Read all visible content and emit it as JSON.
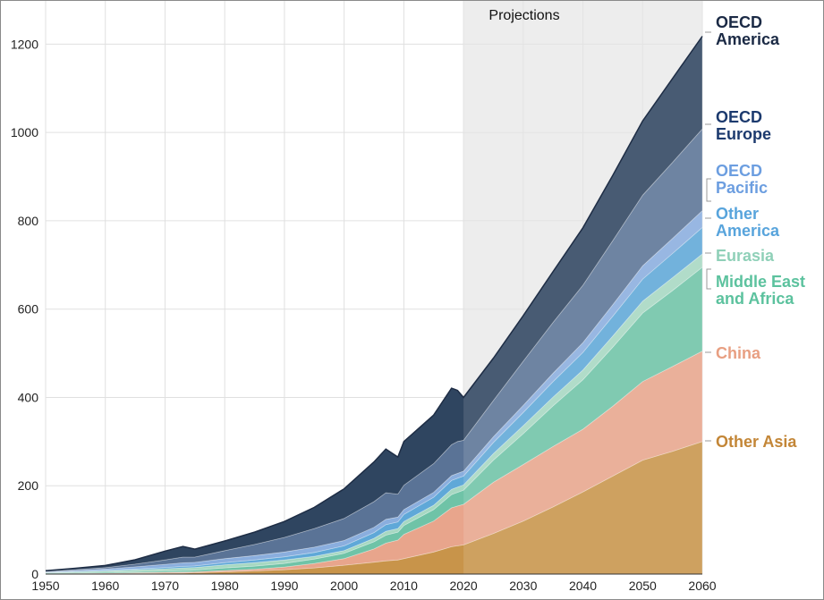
{
  "chart_data": {
    "type": "area",
    "stacked": true,
    "title": "",
    "xlabel": "",
    "ylabel": "",
    "xlim": [
      1950,
      2060
    ],
    "ylim": [
      0,
      1300
    ],
    "x_ticks": [
      1950,
      1960,
      1970,
      1980,
      1990,
      2000,
      2010,
      2020,
      2030,
      2040,
      2050,
      2060
    ],
    "y_ticks": [
      0,
      200,
      400,
      600,
      800,
      1000,
      1200
    ],
    "grid": true,
    "projection_start": 2020,
    "projection_label": "Projections",
    "legend_placement": "right (inline labels)",
    "x": [
      1950,
      1955,
      1960,
      1965,
      1970,
      1973,
      1975,
      1980,
      1985,
      1990,
      1995,
      2000,
      2005,
      2007,
      2009,
      2010,
      2015,
      2018,
      2019,
      2020,
      2025,
      2030,
      2035,
      2040,
      2045,
      2050,
      2055,
      2060
    ],
    "series": [
      {
        "name": "Other Asia",
        "color": "#c8944a",
        "values": [
          0.5,
          0.8,
          1,
          1.5,
          2,
          2.5,
          3,
          5,
          7,
          10,
          14,
          20,
          27,
          30,
          32,
          35,
          50,
          62,
          64,
          66,
          92,
          120,
          152,
          186,
          222,
          258,
          278,
          300
        ]
      },
      {
        "name": "China",
        "color": "#e8a58c",
        "values": [
          0.5,
          0.8,
          1,
          1.5,
          2,
          2,
          2,
          3,
          4,
          6,
          10,
          15,
          30,
          40,
          45,
          55,
          70,
          88,
          90,
          92,
          116,
          128,
          137,
          142,
          158,
          178,
          192,
          205
        ]
      },
      {
        "name": "Middle East and Africa",
        "color": "#6fc3a7",
        "values": [
          1,
          1.5,
          2,
          2.5,
          3,
          3.5,
          4,
          6,
          7,
          8,
          10,
          12,
          16,
          18,
          18,
          20,
          26,
          30,
          31,
          32,
          50,
          70,
          92,
          112,
          134,
          155,
          172,
          190
        ]
      },
      {
        "name": "Eurasia",
        "color": "#a7d8c2",
        "values": [
          1,
          2,
          3,
          4,
          5,
          6,
          6,
          7,
          8,
          8,
          6,
          6,
          8,
          9,
          8,
          9,
          10,
          12,
          12,
          12,
          15,
          18,
          20,
          22,
          25,
          27,
          29,
          30
        ]
      },
      {
        "name": "Other America",
        "color": "#5fa8d8",
        "values": [
          0.5,
          1,
          1.5,
          2,
          3,
          3.5,
          3.5,
          5,
          6,
          7,
          9,
          11,
          13,
          15,
          15,
          16,
          18,
          20,
          20,
          20,
          25,
          30,
          35,
          40,
          45,
          50,
          55,
          60
        ]
      },
      {
        "name": "OECD Pacific",
        "color": "#8aaede",
        "values": [
          1,
          2,
          3,
          5,
          7,
          8,
          8,
          9,
          10,
          11,
          12,
          12,
          12,
          12,
          11,
          11,
          11,
          11,
          11,
          11,
          13,
          16,
          19,
          22,
          26,
          30,
          34,
          38
        ]
      },
      {
        "name": "OECD Europe",
        "color": "#5a7396",
        "values": [
          1,
          2,
          3,
          6,
          10,
          13,
          12,
          18,
          25,
          33,
          42,
          50,
          58,
          60,
          52,
          55,
          65,
          70,
          72,
          70,
          82,
          100,
          115,
          130,
          145,
          160,
          172,
          185
        ]
      },
      {
        "name": "OECD America",
        "color": "#2f4560",
        "values": [
          2,
          3,
          5,
          10,
          20,
          24,
          18,
          22,
          28,
          36,
          48,
          67,
          90,
          99,
          84,
          99,
          110,
          128,
          116,
          97,
          96,
          103,
          115,
          130,
          148,
          168,
          190,
          210
        ]
      }
    ],
    "labels": [
      {
        "text": [
          "OECD",
          "America"
        ],
        "color": "#1b2a45"
      },
      {
        "text": [
          "OECD",
          "Europe"
        ],
        "color": "#1c3a6e"
      },
      {
        "text": [
          "OECD",
          "Pacific"
        ],
        "color": "#6c9ee0"
      },
      {
        "text": [
          "Other",
          "America"
        ],
        "color": "#58a4dc"
      },
      {
        "text": [
          "Eurasia"
        ],
        "color": "#8fd0b8"
      },
      {
        "text": [
          "Middle East",
          "and Africa"
        ],
        "color": "#5cc29e"
      },
      {
        "text": [
          "China"
        ],
        "color": "#e89f82"
      },
      {
        "text": [
          "Other Asia"
        ],
        "color": "#c38637"
      }
    ]
  }
}
